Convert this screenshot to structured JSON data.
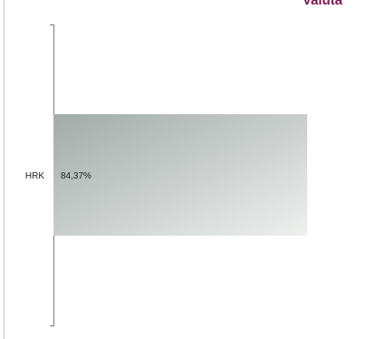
{
  "chart_data": {
    "type": "bar",
    "orientation": "horizontal",
    "title": "Valuta",
    "categories": [
      "HRK"
    ],
    "values": [
      84.37
    ],
    "data_labels": [
      "84,37%"
    ],
    "xlim": [
      0,
      100
    ],
    "grid": false,
    "legend": "none"
  },
  "colors": {
    "title": "#7a1a4f",
    "bar_start": "#a2aba9",
    "bar_end": "#eef0ee",
    "axis": "#7a7a7a"
  }
}
